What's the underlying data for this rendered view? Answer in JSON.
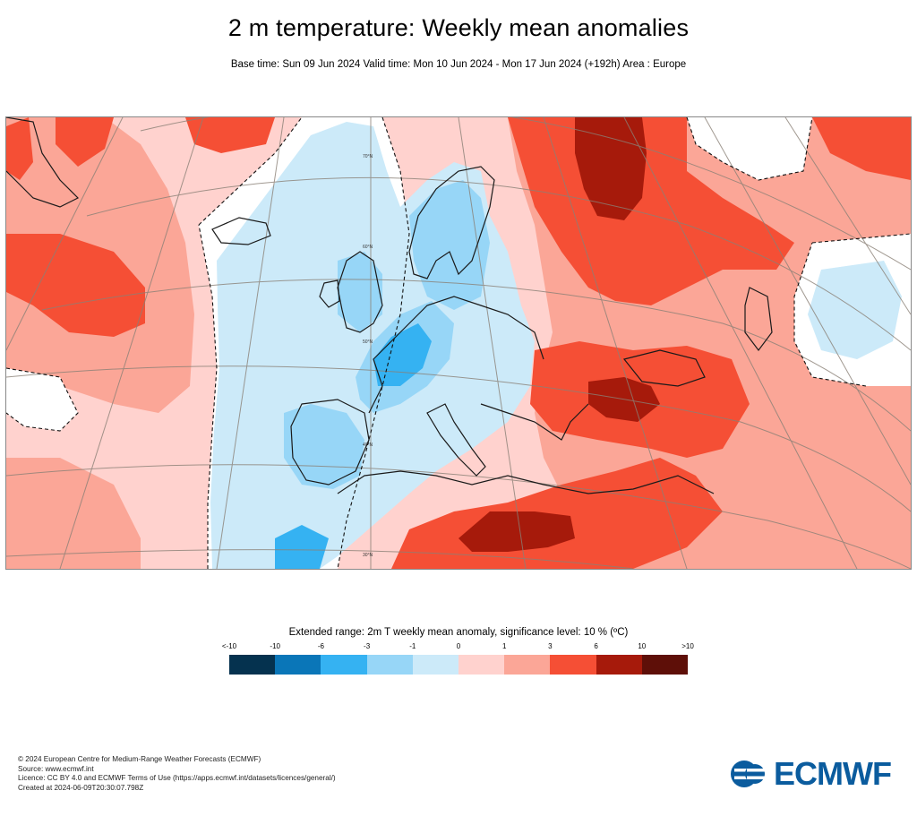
{
  "title": "2 m temperature: Weekly mean anomalies",
  "subtitle": "Base time: Sun 09 Jun 2024 Valid time: Mon 10 Jun 2024 - Mon 17 Jun 2024 (+192h) Area : Europe",
  "map": {
    "lat_labels": [
      "70°N",
      "60°N",
      "50°N",
      "40°N",
      "30°N"
    ]
  },
  "legend": {
    "title": "Extended range: 2m T weekly mean anomaly, significance level: 10 % (ºC)",
    "ticks": [
      "<-10",
      "-10",
      "-6",
      "-3",
      "-1",
      "0",
      "1",
      "3",
      "6",
      "10",
      ">10"
    ],
    "colors": [
      "#05324f",
      "#0a76b8",
      "#35b2f2",
      "#97d6f7",
      "#cceaf9",
      "#ffd2ce",
      "#fba697",
      "#f54f35",
      "#a61a0b",
      "#5e0f08"
    ]
  },
  "footer": {
    "line1": "© 2024 European Centre for Medium-Range Weather Forecasts (ECMWF)",
    "line2": "Source: www.ecmwf.int",
    "line3": "Licence: CC BY 4.0 and ECMWF Terms of Use (https://apps.ecmwf.int/datasets/licences/general/)",
    "line4": "Created at 2024-06-09T20:30:07.798Z"
  },
  "logo": {
    "text": "ECMWF"
  }
}
